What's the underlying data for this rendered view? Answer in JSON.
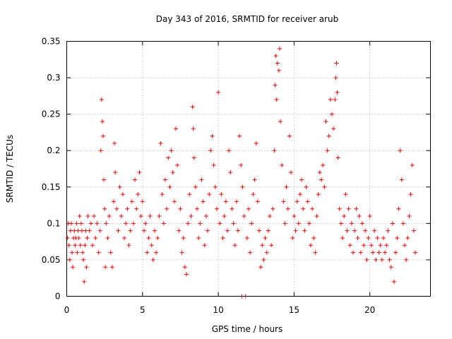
{
  "chart_data": {
    "type": "scatter",
    "title": "Day 343 of 2016, SRMTID for receiver arub",
    "xlabel": "GPS time / hours",
    "ylabel": "SRMTID / TECUs",
    "xlim": [
      0,
      24
    ],
    "ylim": [
      0,
      0.35
    ],
    "grid": true,
    "marker": "plus",
    "marker_color": "#ff0000",
    "xticks": [
      {
        "value": 0,
        "label": "0"
      },
      {
        "value": 5,
        "label": "5"
      },
      {
        "value": 10,
        "label": "10"
      },
      {
        "value": 15,
        "label": "15"
      },
      {
        "value": 20,
        "label": "20"
      }
    ],
    "yticks": [
      {
        "value": 0,
        "label": "0"
      },
      {
        "value": 0.05,
        "label": "0.05"
      },
      {
        "value": 0.1,
        "label": "0.1"
      },
      {
        "value": 0.15,
        "label": "0.15"
      },
      {
        "value": 0.2,
        "label": "0.2"
      },
      {
        "value": 0.25,
        "label": "0.25"
      },
      {
        "value": 0.3,
        "label": "0.3"
      },
      {
        "value": 0.35,
        "label": "0.35"
      }
    ],
    "series": [
      {
        "name": "SRMTID",
        "points": [
          [
            0.05,
            0.08
          ],
          [
            0.1,
            0.1
          ],
          [
            0.15,
            0.07
          ],
          [
            0.2,
            0.05
          ],
          [
            0.25,
            0.09
          ],
          [
            0.3,
            0.1
          ],
          [
            0.35,
            0.06
          ],
          [
            0.4,
            0.04
          ],
          [
            0.45,
            0.08
          ],
          [
            0.5,
            0.09
          ],
          [
            0.55,
            0.07
          ],
          [
            0.6,
            0.08
          ],
          [
            0.65,
            0.1
          ],
          [
            0.7,
            0.06
          ],
          [
            0.75,
            0.09
          ],
          [
            0.8,
            0.08
          ],
          [
            0.85,
            0.11
          ],
          [
            0.9,
            0.07
          ],
          [
            0.95,
            0.1
          ],
          [
            1.0,
            0.09
          ],
          [
            1.05,
            0.06
          ],
          [
            1.1,
            0.05
          ],
          [
            1.15,
            0.02
          ],
          [
            1.2,
            0.07
          ],
          [
            1.25,
            0.09
          ],
          [
            1.3,
            0.04
          ],
          [
            1.35,
            0.08
          ],
          [
            1.4,
            0.11
          ],
          [
            1.5,
            0.09
          ],
          [
            1.6,
            0.1
          ],
          [
            1.7,
            0.07
          ],
          [
            1.8,
            0.11
          ],
          [
            1.9,
            0.08
          ],
          [
            2.0,
            0.1
          ],
          [
            2.1,
            0.06
          ],
          [
            2.2,
            0.09
          ],
          [
            2.25,
            0.2
          ],
          [
            2.3,
            0.27
          ],
          [
            2.35,
            0.24
          ],
          [
            2.4,
            0.22
          ],
          [
            2.45,
            0.16
          ],
          [
            2.5,
            0.12
          ],
          [
            2.55,
            0.04
          ],
          [
            2.6,
            0.1
          ],
          [
            2.7,
            0.08
          ],
          [
            2.8,
            0.11
          ],
          [
            2.9,
            0.06
          ],
          [
            3.0,
            0.04
          ],
          [
            3.1,
            0.13
          ],
          [
            3.15,
            0.21
          ],
          [
            3.2,
            0.17
          ],
          [
            3.3,
            0.12
          ],
          [
            3.4,
            0.09
          ],
          [
            3.5,
            0.15
          ],
          [
            3.6,
            0.11
          ],
          [
            3.7,
            0.14
          ],
          [
            3.8,
            0.08
          ],
          [
            3.9,
            0.1
          ],
          [
            4.0,
            0.12
          ],
          [
            4.1,
            0.07
          ],
          [
            4.2,
            0.09
          ],
          [
            4.3,
            0.13
          ],
          [
            4.4,
            0.1
          ],
          [
            4.5,
            0.16
          ],
          [
            4.6,
            0.12
          ],
          [
            4.7,
            0.14
          ],
          [
            4.8,
            0.17
          ],
          [
            4.9,
            0.11
          ],
          [
            5.0,
            0.13
          ],
          [
            5.1,
            0.09
          ],
          [
            5.2,
            0.1
          ],
          [
            5.3,
            0.06
          ],
          [
            5.4,
            0.08
          ],
          [
            5.5,
            0.11
          ],
          [
            5.6,
            0.07
          ],
          [
            5.7,
            0.05
          ],
          [
            5.8,
            0.09
          ],
          [
            5.9,
            0.06
          ],
          [
            6.0,
            0.08
          ],
          [
            6.1,
            0.11
          ],
          [
            6.2,
            0.21
          ],
          [
            6.3,
            0.14
          ],
          [
            6.4,
            0.1
          ],
          [
            6.5,
            0.16
          ],
          [
            6.6,
            0.12
          ],
          [
            6.7,
            0.19
          ],
          [
            6.8,
            0.15
          ],
          [
            6.9,
            0.2
          ],
          [
            7.0,
            0.17
          ],
          [
            7.1,
            0.13
          ],
          [
            7.2,
            0.23
          ],
          [
            7.3,
            0.18
          ],
          [
            7.4,
            0.09
          ],
          [
            7.5,
            0.12
          ],
          [
            7.6,
            0.06
          ],
          [
            7.7,
            0.08
          ],
          [
            7.8,
            0.04
          ],
          [
            7.9,
            0.03
          ],
          [
            8.0,
            0.1
          ],
          [
            8.1,
            0.14
          ],
          [
            8.2,
            0.11
          ],
          [
            8.3,
            0.26
          ],
          [
            8.35,
            0.23
          ],
          [
            8.4,
            0.19
          ],
          [
            8.5,
            0.15
          ],
          [
            8.6,
            0.12
          ],
          [
            8.7,
            0.08
          ],
          [
            8.8,
            0.1
          ],
          [
            8.9,
            0.16
          ],
          [
            9.0,
            0.13
          ],
          [
            9.1,
            0.07
          ],
          [
            9.2,
            0.11
          ],
          [
            9.3,
            0.09
          ],
          [
            9.4,
            0.14
          ],
          [
            9.5,
            0.2
          ],
          [
            9.6,
            0.22
          ],
          [
            9.7,
            0.18
          ],
          [
            9.8,
            0.15
          ],
          [
            9.9,
            0.12
          ],
          [
            10.0,
            0.28
          ],
          [
            10.1,
            0.1
          ],
          [
            10.2,
            0.14
          ],
          [
            10.3,
            0.08
          ],
          [
            10.4,
            0.11
          ],
          [
            10.5,
            0.13
          ],
          [
            10.6,
            0.09
          ],
          [
            10.7,
            0.2
          ],
          [
            10.8,
            0.17
          ],
          [
            10.9,
            0.12
          ],
          [
            11.0,
            0.1
          ],
          [
            11.1,
            0.07
          ],
          [
            11.2,
            0.13
          ],
          [
            11.3,
            0.09
          ],
          [
            11.4,
            0.22
          ],
          [
            11.5,
            0.18
          ],
          [
            11.55,
            0.0
          ],
          [
            11.6,
            0.15
          ],
          [
            11.7,
            0.11
          ],
          [
            11.8,
            0.0
          ],
          [
            11.9,
            0.08
          ],
          [
            12.0,
            0.12
          ],
          [
            12.1,
            0.06
          ],
          [
            12.2,
            0.1
          ],
          [
            12.3,
            0.14
          ],
          [
            12.4,
            0.16
          ],
          [
            12.5,
            0.21
          ],
          [
            12.6,
            0.13
          ],
          [
            12.7,
            0.09
          ],
          [
            12.8,
            0.04
          ],
          [
            12.9,
            0.07
          ],
          [
            13.0,
            0.05
          ],
          [
            13.1,
            0.08
          ],
          [
            13.2,
            0.06
          ],
          [
            13.3,
            0.09
          ],
          [
            13.4,
            0.11
          ],
          [
            13.5,
            0.07
          ],
          [
            13.6,
            0.12
          ],
          [
            13.7,
            0.2
          ],
          [
            13.75,
            0.29
          ],
          [
            13.8,
            0.33
          ],
          [
            13.85,
            0.27
          ],
          [
            13.9,
            0.32
          ],
          [
            14.0,
            0.31
          ],
          [
            14.05,
            0.34
          ],
          [
            14.1,
            0.24
          ],
          [
            14.2,
            0.18
          ],
          [
            14.3,
            0.13
          ],
          [
            14.4,
            0.1
          ],
          [
            14.5,
            0.15
          ],
          [
            14.6,
            0.12
          ],
          [
            14.7,
            0.22
          ],
          [
            14.8,
            0.17
          ],
          [
            14.9,
            0.08
          ],
          [
            15.0,
            0.11
          ],
          [
            15.1,
            0.09
          ],
          [
            15.2,
            0.13
          ],
          [
            15.3,
            0.1
          ],
          [
            15.4,
            0.14
          ],
          [
            15.5,
            0.16
          ],
          [
            15.6,
            0.12
          ],
          [
            15.7,
            0.09
          ],
          [
            15.8,
            0.15
          ],
          [
            15.9,
            0.13
          ],
          [
            16.0,
            0.1
          ],
          [
            16.1,
            0.07
          ],
          [
            16.2,
            0.12
          ],
          [
            16.3,
            0.08
          ],
          [
            16.4,
            0.06
          ],
          [
            16.5,
            0.11
          ],
          [
            16.6,
            0.14
          ],
          [
            16.7,
            0.17
          ],
          [
            16.8,
            0.16
          ],
          [
            16.9,
            0.18
          ],
          [
            17.0,
            0.15
          ],
          [
            17.1,
            0.24
          ],
          [
            17.2,
            0.2
          ],
          [
            17.3,
            0.22
          ],
          [
            17.4,
            0.27
          ],
          [
            17.5,
            0.25
          ],
          [
            17.6,
            0.23
          ],
          [
            17.7,
            0.27
          ],
          [
            17.75,
            0.3
          ],
          [
            17.8,
            0.32
          ],
          [
            17.85,
            0.28
          ],
          [
            17.9,
            0.19
          ],
          [
            18.0,
            0.12
          ],
          [
            18.1,
            0.1
          ],
          [
            18.2,
            0.08
          ],
          [
            18.3,
            0.11
          ],
          [
            18.4,
            0.14
          ],
          [
            18.5,
            0.09
          ],
          [
            18.6,
            0.12
          ],
          [
            18.7,
            0.07
          ],
          [
            18.8,
            0.1
          ],
          [
            18.9,
            0.06
          ],
          [
            19.0,
            0.09
          ],
          [
            19.1,
            0.12
          ],
          [
            19.2,
            0.08
          ],
          [
            19.3,
            0.11
          ],
          [
            19.4,
            0.06
          ],
          [
            19.5,
            0.1
          ],
          [
            19.6,
            0.07
          ],
          [
            19.7,
            0.09
          ],
          [
            19.8,
            0.05
          ],
          [
            19.9,
            0.08
          ],
          [
            20.0,
            0.11
          ],
          [
            20.1,
            0.07
          ],
          [
            20.2,
            0.06
          ],
          [
            20.3,
            0.09
          ],
          [
            20.4,
            0.05
          ],
          [
            20.5,
            0.08
          ],
          [
            20.6,
            0.06
          ],
          [
            20.7,
            0.07
          ],
          [
            20.8,
            0.05
          ],
          [
            20.9,
            0.08
          ],
          [
            21.0,
            0.06
          ],
          [
            21.1,
            0.07
          ],
          [
            21.2,
            0.09
          ],
          [
            21.3,
            0.05
          ],
          [
            21.4,
            0.04
          ],
          [
            21.5,
            0.1
          ],
          [
            21.6,
            0.02
          ],
          [
            21.7,
            0.06
          ],
          [
            21.8,
            0.08
          ],
          [
            21.9,
            0.12
          ],
          [
            22.0,
            0.2
          ],
          [
            22.1,
            0.16
          ],
          [
            22.2,
            0.1
          ],
          [
            22.3,
            0.07
          ],
          [
            22.4,
            0.05
          ],
          [
            22.5,
            0.08
          ],
          [
            22.6,
            0.11
          ],
          [
            22.7,
            0.14
          ],
          [
            22.8,
            0.18
          ],
          [
            22.9,
            0.09
          ],
          [
            23.0,
            0.06
          ]
        ]
      }
    ]
  }
}
